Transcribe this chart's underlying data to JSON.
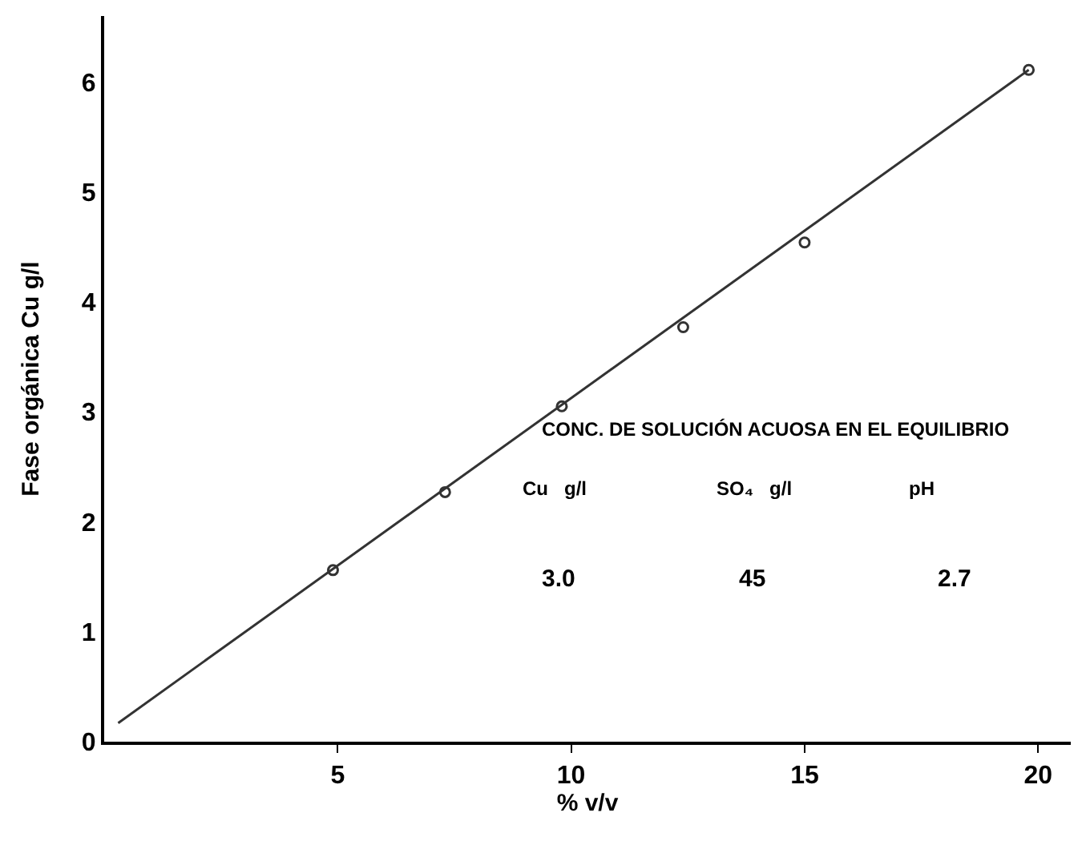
{
  "chart_data": {
    "type": "scatter",
    "xlabel": "% v/v",
    "ylabel": "Fase orgánica Cu g/l",
    "x": [
      4.9,
      7.3,
      9.8,
      12.4,
      15.0,
      19.8
    ],
    "series": [
      {
        "color": "#333333",
        "values": [
          1.56,
          2.27,
          3.05,
          3.77,
          4.54,
          6.11
        ]
      },
      {
        "type": "line",
        "color": "#333333",
        "x": [
          0.3,
          19.8
        ],
        "values": [
          0.17,
          6.11
        ],
        "marker": "none"
      }
    ],
    "xlim": [
      0,
      20.7
    ],
    "xticks": [
      5,
      10,
      15,
      20
    ],
    "ylim": [
      0,
      6.6
    ],
    "yticks": [
      0,
      1,
      2,
      3,
      4,
      5,
      6
    ],
    "grid": false,
    "marker": "circle",
    "line_style": "solid",
    "annotations": [
      "CONC. DE SOLUCIÓN ACUOSA EN EL EQUILIBRIO",
      "Cu   g/l",
      "SO₄   g/l",
      "pH",
      "3.0",
      "45",
      "2.7"
    ]
  }
}
